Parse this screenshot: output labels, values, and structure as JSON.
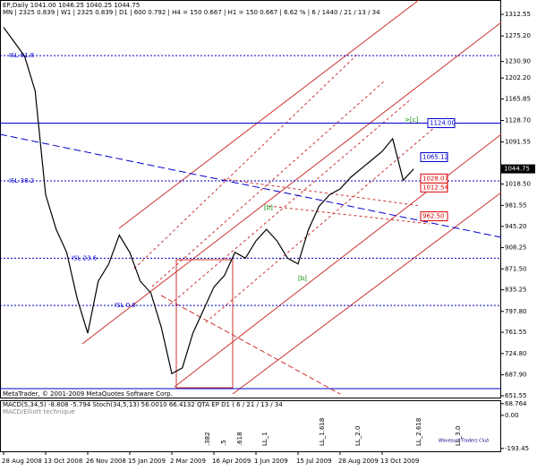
{
  "chart_data": {
    "type": "line",
    "title": "EP,Daily  1041.00 1046.25 1040.25 1044.75",
    "subtitle": "MN | 2325   0.839 | W1 | 2325   0.839 | D1 | 600   0.792 | H4 = 150   0.667 | H1 = 150   0.667 | 6.62 % | 6 / 1440 / 21 / 13 / 34",
    "footer": "MetaTrader, © 2001-2009 MetaQuotes Software Corp.",
    "categories": [
      "28 Aug 2008",
      null,
      null,
      null,
      "13 Oct 2008",
      null,
      null,
      null,
      "26 Nov 2008",
      null,
      null,
      null,
      "15 Jan 2009",
      null,
      null,
      null,
      "2 Mar 2009",
      null,
      null,
      null,
      "16 Apr 2009",
      null,
      null,
      null,
      "1 Jun 2009",
      null,
      null,
      null,
      "15 Jul 2009",
      null,
      null,
      null,
      "28 Aug 2009",
      null,
      null,
      null,
      "13 Oct 2009",
      null,
      null,
      null
    ],
    "series": [
      {
        "name": "EP",
        "color": "#000000",
        "values": [
          1290,
          1265,
          1240,
          1180,
          1000,
          940,
          900,
          820,
          760,
          850,
          880,
          930,
          900,
          850,
          830,
          770,
          690,
          700,
          760,
          800,
          840,
          860,
          900,
          890,
          920,
          940,
          920,
          890,
          880,
          940,
          980,
          1000,
          1010,
          1030,
          1045,
          1060,
          1075,
          1097,
          1025,
          1044.75
        ]
      }
    ],
    "ylim": [
      646.9,
      1337.4
    ],
    "yticks": [
      1312.55,
      {
        "value": 1275.2,
        "label": "1275.20"
      },
      {
        "value": 1230.9,
        "label": "1230.90"
      },
      {
        "value": 1202.2,
        "label": "1202.20"
      },
      1165.85,
      {
        "value": 1128.7,
        "label": "1128.70"
      },
      1091.55,
      {
        "value": 1018.5,
        "label": "1018.50"
      },
      981.55,
      {
        "value": 945.2,
        "label": "945.20"
      },
      908.25,
      {
        "value": 871.5,
        "label": "871.50"
      },
      835.25,
      {
        "value": 797.8,
        "label": "797.80"
      },
      761.55,
      {
        "value": 724.8,
        "label": "724.80"
      },
      {
        "value": 687.9,
        "label": "687.90"
      },
      651.55
    ],
    "last_price": {
      "value": 1044.75,
      "label": "1044.75"
    },
    "isl_levels": [
      {
        "value": 1241,
        "label": "ISL 61.8"
      },
      {
        "value": 1024,
        "label": "ISL 38.2"
      },
      {
        "value": 890,
        "label": "ISL 23.6"
      },
      {
        "value": 808,
        "label": "ISL 0.0"
      }
    ],
    "price_boxes": [
      {
        "value": 1124,
        "label": "1124.00",
        "color": "#0000cc"
      },
      {
        "value": 1065.12,
        "label": "1065.12",
        "color": "#0000cc"
      },
      {
        "value": 1028.07,
        "label": "1028.07",
        "color": "#dd0000"
      },
      {
        "value": 1012.54,
        "label": "1012.54",
        "color": "#dd0000"
      },
      {
        "value": 962.5,
        "label": "962.50",
        "color": "#dd0000"
      }
    ],
    "wave_labels": [
      "[b]",
      "[b]",
      ">[c]"
    ],
    "time_zones": [
      ".382",
      ".5",
      ".618",
      "LL_1",
      "LL_1.618",
      "LL_2.0",
      "LL_2.618",
      "LL_3.0"
    ],
    "indicator": {
      "label": "MACD(5,34,5) -8.808 -5.794  Stoch(34,5,13) 56.0010 66.4132  QTA EP D1 ( 6 / 21 / 13 / 34",
      "sublabel": "MACD/Elliott technique",
      "watermark": "Wavesurf Traders Club",
      "ylim": [
        -205,
        78
      ],
      "yticks": [
        {
          "value": 68.764,
          "label": "68.764"
        },
        {
          "value": 0,
          "label": "0.00"
        },
        {
          "value": -193.45,
          "label": "-193.45"
        }
      ]
    }
  }
}
